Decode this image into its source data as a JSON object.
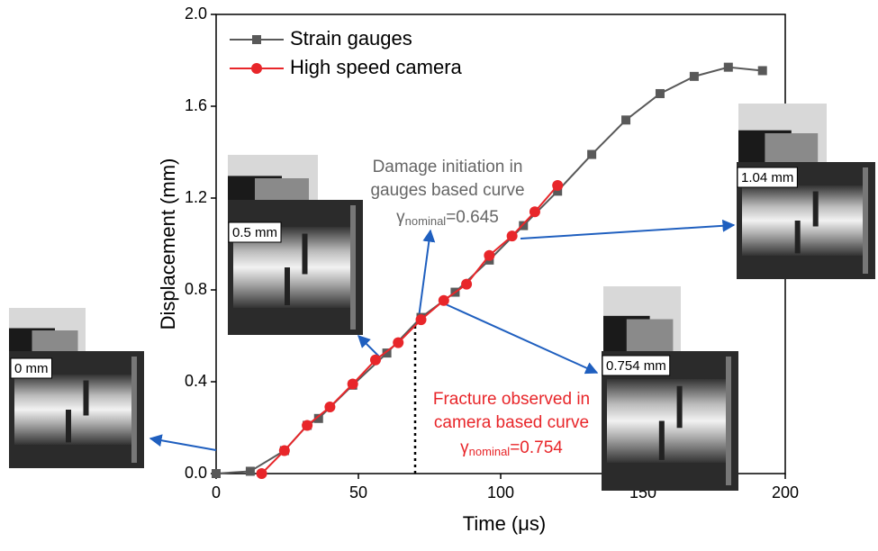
{
  "chart_data": {
    "type": "line",
    "xlabel": "Time (μs)",
    "ylabel": "Displacement (mm)",
    "xlim": [
      0,
      200
    ],
    "xticks": [
      0,
      50,
      100,
      150,
      200
    ],
    "ylim": [
      0,
      2.0
    ],
    "yticks": [
      {
        "value": 0,
        "label": "0.0"
      },
      0.4,
      0.8,
      1.2,
      1.6,
      {
        "value": 2,
        "label": "2.0"
      }
    ],
    "legend": "upper left",
    "series": [
      {
        "name": "Strain gauges",
        "color": "#595959",
        "marker": "square",
        "x": [
          0,
          12,
          24,
          32,
          36,
          48,
          60,
          72,
          84,
          96,
          108,
          120,
          132,
          144,
          156,
          168,
          180,
          192
        ],
        "values": [
          0,
          0.01,
          0.1,
          0.21,
          0.24,
          0.385,
          0.525,
          0.68,
          0.79,
          0.93,
          1.08,
          1.23,
          1.39,
          1.54,
          1.655,
          1.73,
          1.77,
          1.755
        ]
      },
      {
        "name": "High speed camera",
        "color": "#e8262a",
        "marker": "circle",
        "x": [
          16,
          24,
          32,
          40,
          48,
          56,
          64,
          72,
          80,
          88,
          96,
          104,
          112,
          120
        ],
        "values": [
          0,
          0.1,
          0.21,
          0.29,
          0.39,
          0.495,
          0.57,
          0.67,
          0.754,
          0.825,
          0.95,
          1.035,
          1.14,
          1.255
        ]
      }
    ],
    "damage_text": [
      "Damage initiation in",
      "gauges based curve"
    ],
    "damage_gamma": [
      "γ",
      "nominal",
      "=0.645"
    ],
    "fracture_text": [
      "Fracture observed in",
      "camera based curve"
    ],
    "fracture_gamma": [
      "γ",
      "nominal",
      "=0.754"
    ],
    "image_labels": [
      "0 mm",
      "0.5 mm",
      "0.754 mm",
      "1.04 mm"
    ]
  }
}
